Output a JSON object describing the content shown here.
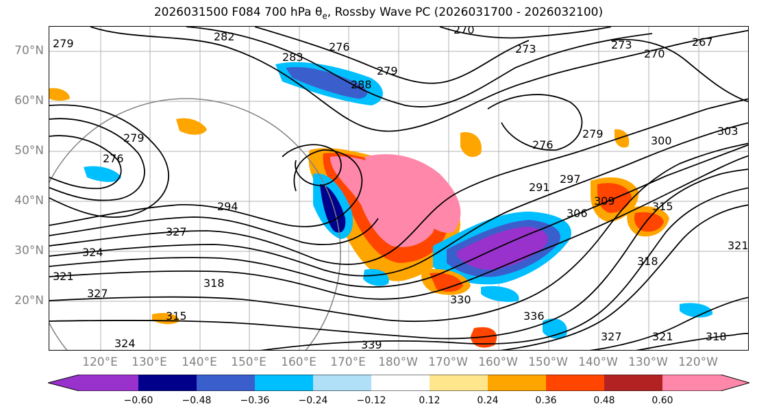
{
  "title": "2026031500 F084 700 hPa θe, Rossby Wave PC (2026031700 - 2026032100)",
  "map": {
    "lat_labels": [
      "70°N",
      "60°N",
      "50°N",
      "40°N",
      "30°N",
      "20°N"
    ],
    "lon_labels": [
      "120°E",
      "130°E",
      "140°E",
      "150°E",
      "160°E",
      "170°E",
      "180°W",
      "170°W",
      "160°W",
      "150°W",
      "140°W",
      "130°W",
      "120°W"
    ],
    "contour_labels": [
      "270",
      "273",
      "273",
      "276",
      "276",
      "276",
      "279",
      "279",
      "279",
      "279",
      "282",
      "283",
      "288",
      "291",
      "294",
      "297",
      "300",
      "303",
      "306",
      "309",
      "315",
      "315",
      "318",
      "318",
      "318",
      "321",
      "321",
      "321",
      "324",
      "324",
      "327",
      "327",
      "327",
      "330",
      "336",
      "339",
      "267",
      "270"
    ]
  },
  "colorbar": {
    "ticks": [
      "−0.60",
      "−0.48",
      "−0.36",
      "−0.24",
      "−0.12",
      "0.12",
      "0.24",
      "0.36",
      "0.48",
      "0.60"
    ],
    "colors": [
      "#9932cc",
      "#00008b",
      "#3a5fcd",
      "#00bfff",
      "#b0e0f8",
      "#ffffff",
      "#ffe68c",
      "#ffa500",
      "#ff4500",
      "#b22222",
      "#ff88aa",
      "#ff88aa"
    ]
  }
}
